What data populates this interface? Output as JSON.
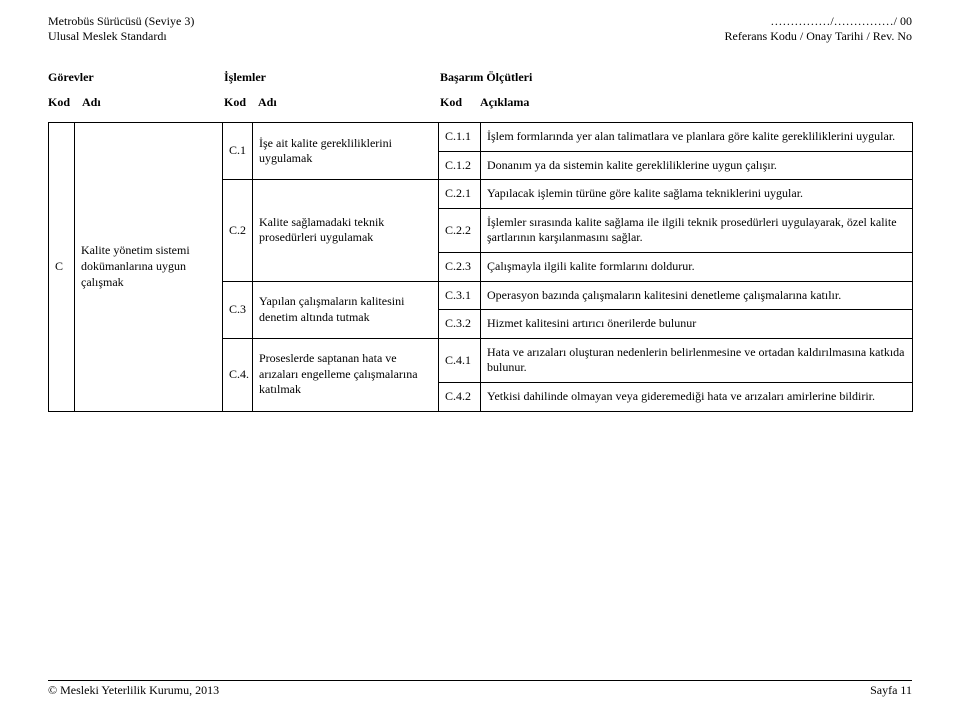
{
  "header": {
    "left_line1": "Metrobüs Sürücüsü (Seviye 3)",
    "left_line2": "Ulusal Meslek Standardı",
    "right_line1": "……………/……………/ 00",
    "right_line2": "Referans Kodu / Onay Tarihi / Rev. No"
  },
  "section_titles": {
    "gorevler": "Görevler",
    "islemler": "İşlemler",
    "basarim": "Başarım Ölçütleri"
  },
  "kod_adi": {
    "kod": "Kod",
    "adi": "Adı",
    "aciklama": "Açıklama"
  },
  "col1": {
    "code": "C",
    "name": "Kalite yönetim sistemi dokümanlarına uygun çalışmak"
  },
  "groups": [
    {
      "code": "C.1",
      "name": "İşe ait kalite gerekliliklerini uygulamak",
      "rows": [
        {
          "code": "C.1.1",
          "text": "İşlem formlarında yer alan talimatlara ve planlara göre kalite gerekliliklerini uygular."
        },
        {
          "code": "C.1.2",
          "text": "Donanım ya da sistemin kalite gerekliliklerine uygun çalışır."
        }
      ]
    },
    {
      "code": "C.2",
      "name": "Kalite sağlamadaki teknik prosedürleri uygulamak",
      "pre_row": {
        "code": "C.2.1",
        "text": "Yapılacak işlemin türüne göre kalite sağlama tekniklerini uygular."
      },
      "rows": [
        {
          "code": "C.2.2",
          "text": "İşlemler sırasında kalite sağlama ile ilgili teknik prosedürleri uygulayarak, özel kalite şartlarının karşılanmasını sağlar."
        },
        {
          "code": "C.2.3",
          "text": "Çalışmayla ilgili kalite formlarını doldurur."
        }
      ]
    },
    {
      "code": "C.3",
      "name": "Yapılan çalışmaların kalitesini denetim altında tutmak",
      "rows": [
        {
          "code": "C.3.1",
          "text": "Operasyon bazında çalışmaların kalitesini denetleme çalışmalarına katılır."
        },
        {
          "code": "C.3.2",
          "text": "Hizmet kalitesini artırıcı önerilerde bulunur"
        }
      ]
    },
    {
      "code": "C.4.",
      "name": "Proseslerde saptanan hata ve arızaları engelleme çalışmalarına katılmak",
      "rows": [
        {
          "code": "C.4.1",
          "text": "Hata ve arızaları oluşturan nedenlerin belirlenmesine ve ortadan kaldırılmasına katkıda bulunur."
        },
        {
          "code": "C.4.2",
          "text": "Yetkisi dahilinde olmayan veya gideremediği hata ve arızaları amirlerine bildirir."
        }
      ]
    }
  ],
  "footer": {
    "left": "© Mesleki Yeterlilik Kurumu, 2013",
    "right": "Sayfa 11"
  }
}
